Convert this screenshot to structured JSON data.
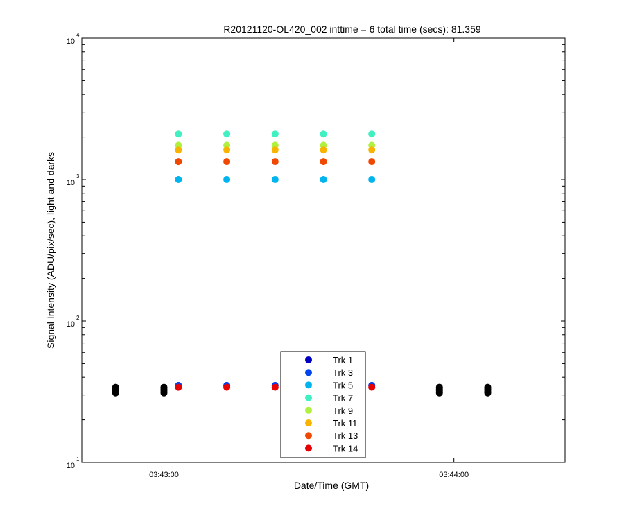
{
  "chart_data": {
    "type": "scatter",
    "title": "R20121120-OL420_002 inttime = 6 total time (secs): 81.359",
    "xlabel": "Date/Time (GMT)",
    "ylabel": "Signal Intensity (ADU/pix/sec), light and darks",
    "y_scale": "log",
    "ylim": [
      10,
      10000
    ],
    "xlim": [
      "03:42:43",
      "03:44:23"
    ],
    "x_ticks": [
      "03:43:00",
      "03:44:00"
    ],
    "y_tick_labels": [
      {
        "value": 10,
        "base": "10",
        "exp": "1"
      },
      {
        "value": 100,
        "base": "10",
        "exp": "2"
      },
      {
        "value": 1000,
        "base": "10",
        "exp": "3"
      },
      {
        "value": 10000,
        "base": "10",
        "exp": "4"
      }
    ],
    "grid": false,
    "legend_position": "bottom-center",
    "lights_times": [
      "03:43:03",
      "03:43:13",
      "03:43:23",
      "03:43:33",
      "03:43:43"
    ],
    "series": [
      {
        "name": "Trk 1",
        "color": "#0000c0",
        "values": [
          35,
          35,
          35,
          35,
          35
        ]
      },
      {
        "name": "Trk 3",
        "color": "#0044ee",
        "values": [
          35,
          35,
          35,
          35,
          35
        ]
      },
      {
        "name": "Trk 5",
        "color": "#00b4f0",
        "values": [
          1000,
          1000,
          1000,
          1000,
          1000
        ]
      },
      {
        "name": "Trk 7",
        "color": "#40f0c0",
        "values": [
          2100,
          2100,
          2100,
          2100,
          2100
        ]
      },
      {
        "name": "Trk 9",
        "color": "#b0f040",
        "values": [
          1750,
          1750,
          1750,
          1750,
          1750
        ]
      },
      {
        "name": "Trk 11",
        "color": "#f8b400",
        "values": [
          1620,
          1620,
          1620,
          1620,
          1620
        ]
      },
      {
        "name": "Trk 13",
        "color": "#f04800",
        "values": [
          1340,
          1340,
          1340,
          1340,
          1340
        ]
      },
      {
        "name": "Trk 14",
        "color": "#e80000",
        "values": [
          34,
          34,
          34,
          34,
          34
        ]
      }
    ],
    "darks": {
      "color": "#000000",
      "times": [
        "03:42:50",
        "03:43:00",
        "03:43:57",
        "03:44:07"
      ],
      "values": [
        31,
        32,
        33,
        34
      ]
    }
  }
}
